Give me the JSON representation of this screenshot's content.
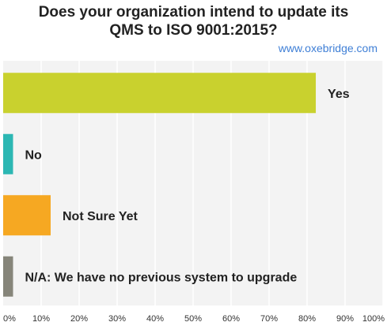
{
  "title_line1": "Does your organization intend to update its",
  "title_line2": "QMS to ISO 9001:2015?",
  "watermark": "www.oxebridge.com",
  "chart_data": {
    "type": "bar",
    "orientation": "horizontal",
    "categories": [
      "Yes",
      "No",
      "Not Sure Yet",
      "N/A: We have no previous system to upgrade"
    ],
    "values": [
      82.3,
      2.6,
      12.5,
      2.6
    ],
    "colors": [
      "#c9d12e",
      "#2cb7b3",
      "#f6a822",
      "#86857a"
    ],
    "xlim": [
      0,
      100
    ],
    "xticks": [
      "0%",
      "10%",
      "20%",
      "30%",
      "40%",
      "50%",
      "60%",
      "70%",
      "80%",
      "90%",
      "100%"
    ],
    "grid": true,
    "background": "#f3f3f3",
    "grid_color": "#ffffff"
  }
}
